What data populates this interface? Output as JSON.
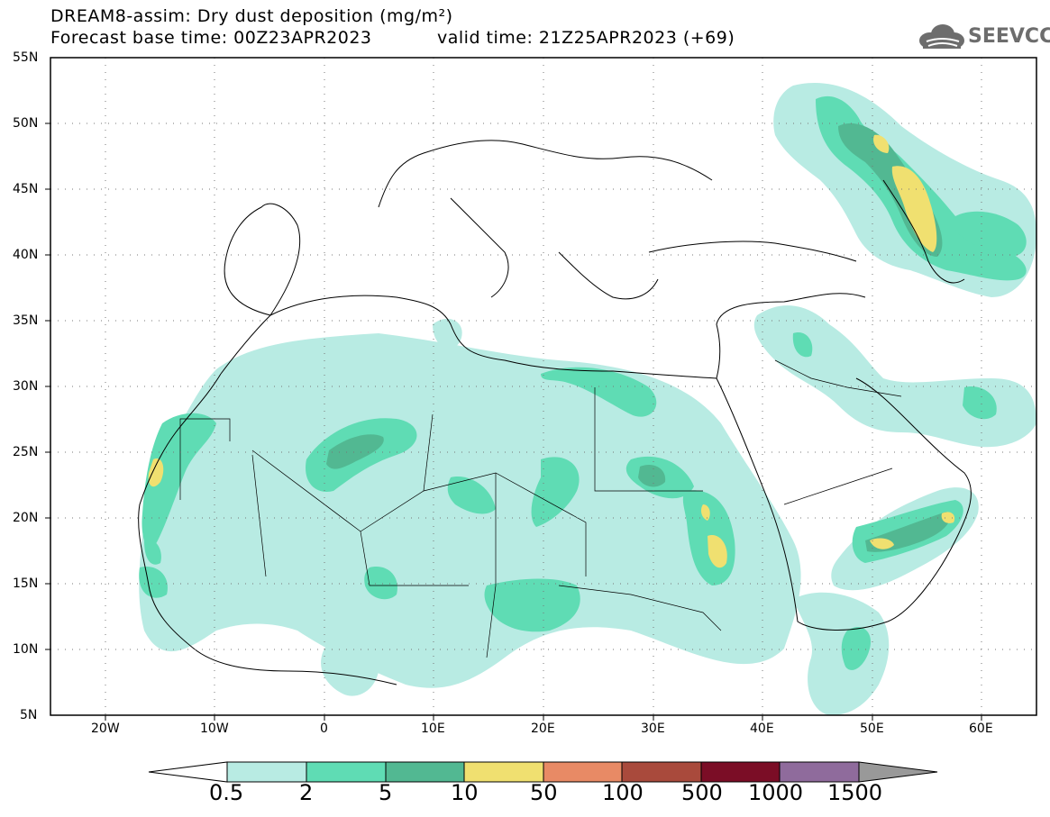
{
  "header": {
    "line1": "DREAM8-assim: Dry dust deposition (mg/m²)",
    "line2a": "Forecast base time: 00Z23APR2023",
    "line2b": "valid time: 21Z25APR2023 (+69)"
  },
  "logo": {
    "text": "SEEVCCC",
    "icon": "cloud-icon"
  },
  "map": {
    "region": "North Africa / Middle East / Europe",
    "lat_range": [
      5,
      55
    ],
    "lon_range": [
      -25,
      65
    ],
    "lat_labels": [
      "55N",
      "50N",
      "45N",
      "40N",
      "35N",
      "30N",
      "25N",
      "20N",
      "15N",
      "10N",
      "5N"
    ],
    "lon_labels": [
      "20W",
      "10W",
      "0",
      "10E",
      "20E",
      "30E",
      "40E",
      "50E",
      "60E"
    ],
    "grid": "dotted"
  },
  "colorbar": {
    "labels": [
      "0.5",
      "2",
      "5",
      "10",
      "50",
      "100",
      "500",
      "1000",
      "1500"
    ],
    "colors": [
      "#b8ebe3",
      "#5fdcb4",
      "#52b892",
      "#f0e070",
      "#e88a65",
      "#a94a3c",
      "#7b0d26",
      "#8f6b9c",
      "#999999"
    ]
  }
}
